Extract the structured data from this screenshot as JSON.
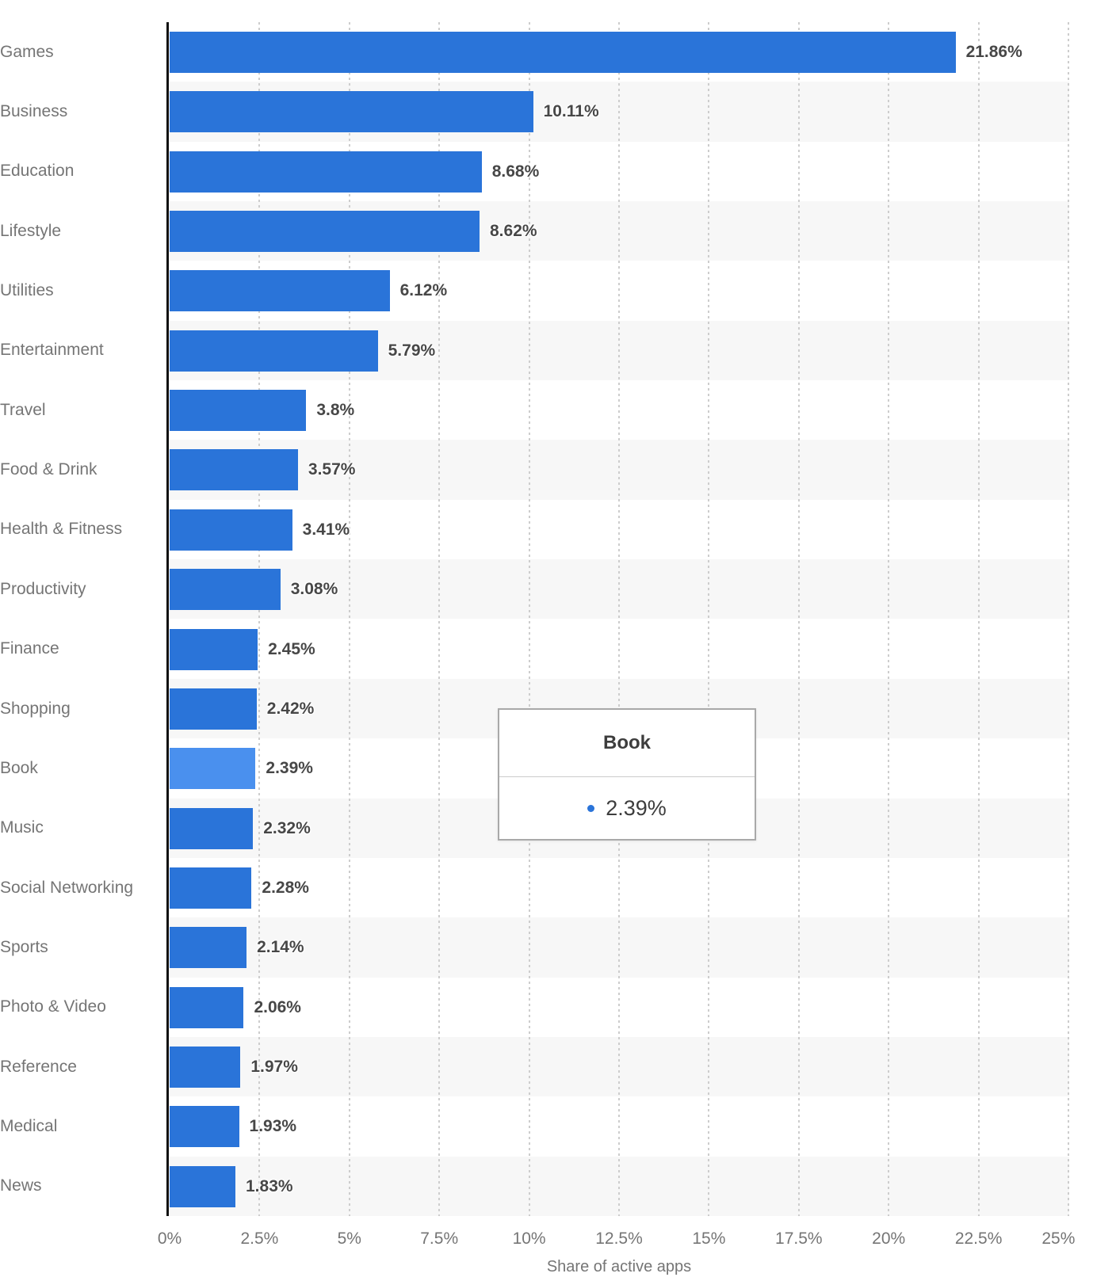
{
  "chart_data": {
    "type": "bar",
    "orientation": "horizontal",
    "xlabel": "Share of active apps",
    "xlim": [
      0,
      25
    ],
    "grid": "vertical dashed gridlines every 2.5%",
    "legend": "none",
    "x_tick_labels": [
      "0%",
      "2.5%",
      "5%",
      "7.5%",
      "10%",
      "12.5%",
      "15%",
      "17.5%",
      "20%",
      "22.5%",
      "25%"
    ],
    "categories": [
      "Games",
      "Business",
      "Education",
      "Lifestyle",
      "Utilities",
      "Entertainment",
      "Travel",
      "Food & Drink",
      "Health & Fitness",
      "Productivity",
      "Finance",
      "Shopping",
      "Book",
      "Music",
      "Social Networking",
      "Sports",
      "Photo & Video",
      "Reference",
      "Medical",
      "News"
    ],
    "values": [
      21.86,
      10.11,
      8.68,
      8.62,
      6.12,
      5.79,
      3.8,
      3.57,
      3.41,
      3.08,
      2.45,
      2.42,
      2.39,
      2.32,
      2.28,
      2.14,
      2.06,
      1.97,
      1.93,
      1.83
    ],
    "value_labels": [
      "21.86%",
      "10.11%",
      "8.68%",
      "8.62%",
      "6.12%",
      "5.79%",
      "3.8%",
      "3.57%",
      "3.41%",
      "3.08%",
      "2.45%",
      "2.42%",
      "2.39%",
      "2.32%",
      "2.28%",
      "2.14%",
      "2.06%",
      "1.97%",
      "1.93%",
      "1.83%"
    ],
    "highlighted_category": "Book"
  },
  "tooltip": {
    "title": "Book",
    "value": "2.39%"
  },
  "colors": {
    "bar": "#2a74d9",
    "bar_highlight": "#4a90ee",
    "row_band": "#f7f7f7",
    "gridline": "#cdcdcd",
    "axis_line": "#111111",
    "category_label": "#757575",
    "value_label": "#474747",
    "tick_label": "#757575",
    "axis_title": "#757575",
    "tooltip_border": "#a9a9a9",
    "tooltip_text": "#3d3d3d"
  }
}
